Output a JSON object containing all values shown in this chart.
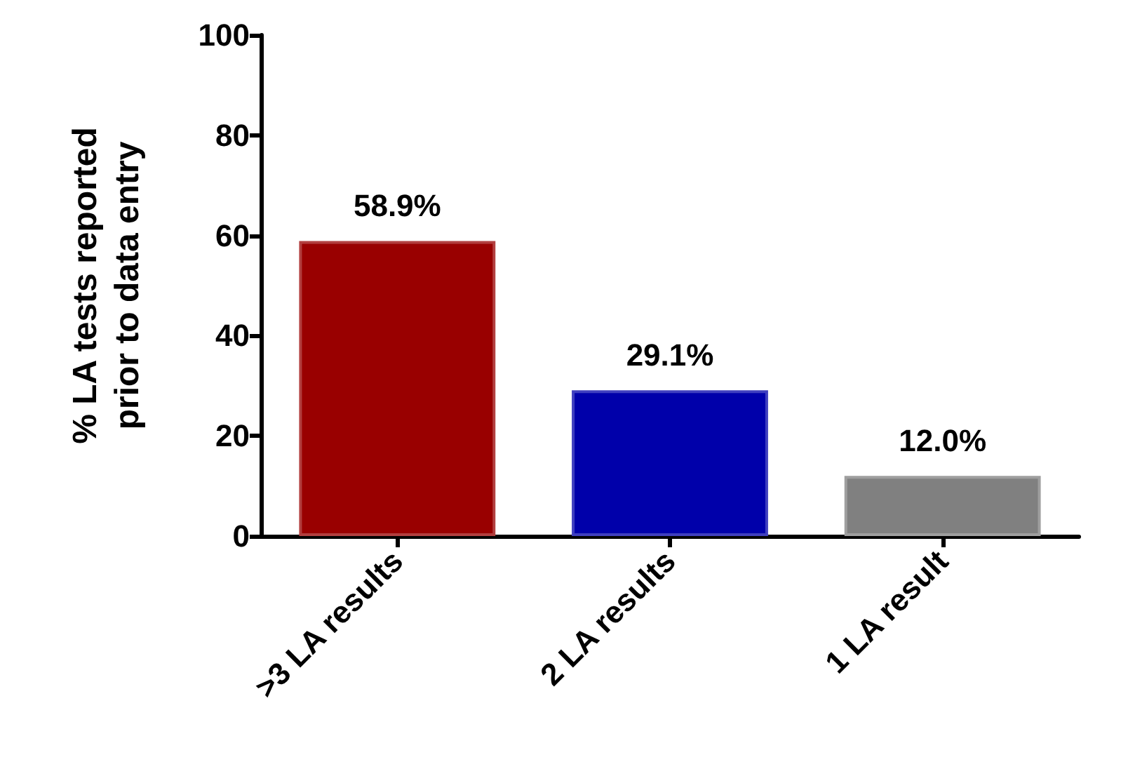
{
  "chart_data": {
    "type": "bar",
    "ylabel": "% LA tests reported\nprior to data entry",
    "categories": [
      ">3 LA results",
      "2 LA results",
      "1 LA result"
    ],
    "values": [
      58.9,
      29.1,
      12.0
    ],
    "colors": [
      "#990000",
      "#0000aa",
      "#808080"
    ],
    "value_labels": [
      "58.9%",
      "29.1%",
      "12.0%"
    ],
    "ylim": [
      0,
      100
    ],
    "yticks": [
      0,
      20,
      40,
      60,
      80,
      100
    ],
    "grid": false
  }
}
